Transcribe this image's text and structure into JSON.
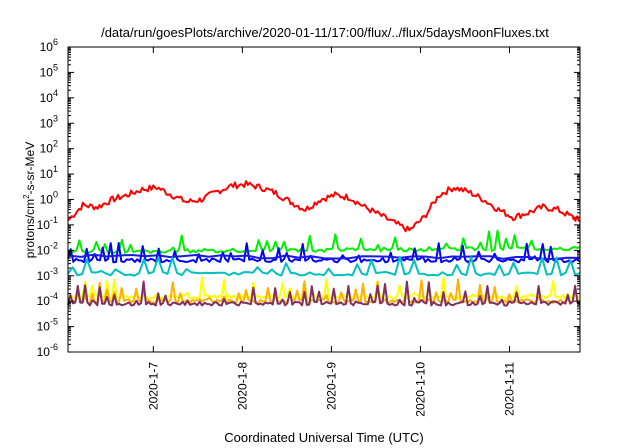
{
  "chart_data": {
    "type": "line",
    "title": "/data/run/goesPlots/archive/2020-01-11/17:00/flux/../flux/5daysMoonFluxes.txt",
    "xlabel": "Coordinated Universal Time (UTC)",
    "ylabel_base": "protons/cm",
    "ylabel_sup": "2",
    "ylabel_rest": "-s-sr-MeV",
    "yscale": "log",
    "ylim": [
      1e-06,
      1000000.0
    ],
    "xlim": [
      "2020-01-06T01:00",
      "2020-01-11T19:00"
    ],
    "grid": false,
    "legend": "none",
    "y_ticks": [
      {
        "base": "10",
        "exp": "-6",
        "value": 1e-06
      },
      {
        "base": "10",
        "exp": "-5",
        "value": 1e-05
      },
      {
        "base": "10",
        "exp": "-4",
        "value": 0.0001
      },
      {
        "base": "10",
        "exp": "-3",
        "value": 0.001
      },
      {
        "base": "10",
        "exp": "-2",
        "value": 0.01
      },
      {
        "base": "10",
        "exp": "-1",
        "value": 0.1
      },
      {
        "base": "10",
        "exp": "0",
        "value": 1
      },
      {
        "base": "10",
        "exp": "1",
        "value": 10.0
      },
      {
        "base": "10",
        "exp": "2",
        "value": 100.0
      },
      {
        "base": "10",
        "exp": "3",
        "value": 1000.0
      },
      {
        "base": "10",
        "exp": "4",
        "value": 10000.0
      },
      {
        "base": "10",
        "exp": "5",
        "value": 100000.0
      },
      {
        "base": "10",
        "exp": "6",
        "value": 1000000.0
      }
    ],
    "x_ticks": [
      {
        "label": "2020-1-7",
        "date": "2020-01-07T00:00"
      },
      {
        "label": "2020-1-8",
        "date": "2020-01-08T00:00"
      },
      {
        "label": "2020-1-9",
        "date": "2020-01-09T00:00"
      },
      {
        "label": "2020-1-10",
        "date": "2020-01-10T00:00"
      },
      {
        "label": "2020-1-11",
        "date": "2020-01-11T00:00"
      }
    ],
    "series": [
      {
        "color": "#ff0000",
        "style": "smooth",
        "x": [
          "2020-01-06T01:00",
          "2020-01-06T05:00",
          "2020-01-06T09:00",
          "2020-01-06T13:00",
          "2020-01-06T17:00",
          "2020-01-06T21:00",
          "2020-01-07T01:00",
          "2020-01-07T05:00",
          "2020-01-07T09:00",
          "2020-01-07T13:00",
          "2020-01-07T17:00",
          "2020-01-07T21:00",
          "2020-01-08T01:00",
          "2020-01-08T05:00",
          "2020-01-08T09:00",
          "2020-01-08T13:00",
          "2020-01-08T17:00",
          "2020-01-08T21:00",
          "2020-01-09T01:00",
          "2020-01-09T05:00",
          "2020-01-09T09:00",
          "2020-01-09T13:00",
          "2020-01-09T17:00",
          "2020-01-09T21:00",
          "2020-01-10T01:00",
          "2020-01-10T05:00",
          "2020-01-10T09:00",
          "2020-01-10T13:00",
          "2020-01-10T17:00",
          "2020-01-10T21:00",
          "2020-01-11T01:00",
          "2020-01-11T05:00",
          "2020-01-11T09:00",
          "2020-01-11T13:00",
          "2020-01-11T17:00",
          "2020-01-11T19:00"
        ],
        "y": [
          0.15,
          0.6,
          0.5,
          1.0,
          1.5,
          2.5,
          3.0,
          1.5,
          0.8,
          1.0,
          2.0,
          3.5,
          4.0,
          3.0,
          1.8,
          0.8,
          0.4,
          1.0,
          1.5,
          1.2,
          0.5,
          0.25,
          0.12,
          0.06,
          0.2,
          1.5,
          3.0,
          2.0,
          1.0,
          0.4,
          0.2,
          0.3,
          0.5,
          0.4,
          0.2,
          0.15
        ]
      },
      {
        "color": "#00ee00",
        "style": "spiky",
        "x": [
          "2020-01-06T01:00",
          "2020-01-11T19:00"
        ],
        "y": [
          0.009,
          0.012
        ],
        "peak": 0.06,
        "count": 60
      },
      {
        "color": "#0000ff",
        "style": "spiky",
        "x": [
          "2020-01-06T01:00",
          "2020-01-11T19:00"
        ],
        "y": [
          0.004,
          0.004
        ],
        "peak": 0.02,
        "count": 64
      },
      {
        "color": "#1a1ae0",
        "style": "flat-steps",
        "x": [
          "2020-01-06T01:00",
          "2020-01-11T19:00"
        ],
        "y": [
          0.006,
          0.005
        ]
      },
      {
        "color": "#00c0c0",
        "style": "spiky",
        "x": [
          "2020-01-06T01:00",
          "2020-01-11T19:00"
        ],
        "y": [
          0.0012,
          0.0012
        ],
        "peak": 0.006,
        "count": 36
      },
      {
        "color": "#ffff00",
        "style": "spiky",
        "x": [
          "2020-01-06T01:00",
          "2020-01-11T19:00"
        ],
        "y": [
          0.00015,
          0.00015
        ],
        "peak": 0.0009,
        "count": 70
      },
      {
        "color": "#ffb000",
        "style": "spiky",
        "x": [
          "2020-01-06T01:00",
          "2020-01-11T19:00"
        ],
        "y": [
          0.0001,
          0.0001
        ],
        "peak": 0.0008,
        "count": 70
      },
      {
        "color": "#803060",
        "style": "spiky",
        "x": [
          "2020-01-06T01:00",
          "2020-01-11T19:00"
        ],
        "y": [
          8e-05,
          8e-05
        ],
        "peak": 0.0006,
        "count": 70
      }
    ]
  }
}
